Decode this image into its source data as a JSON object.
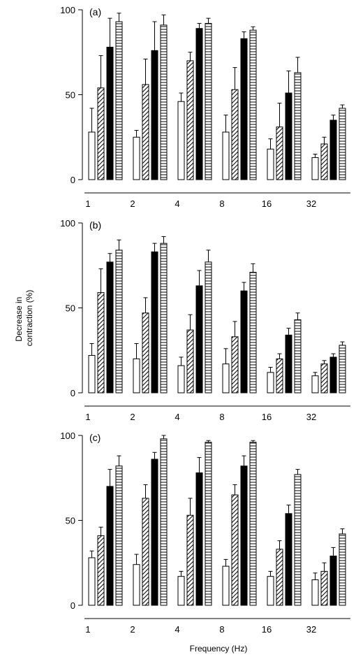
{
  "ylabel_line1": "Decrease in",
  "ylabel_line2": "contraction (%)",
  "xlabel": "Frequency (Hz)",
  "chart_data": [
    {
      "type": "bar",
      "panel": "(a)",
      "categories": [
        "1",
        "2",
        "4",
        "8",
        "16",
        "32"
      ],
      "ylim": [
        0,
        100
      ],
      "yticks": [
        0,
        50,
        100
      ],
      "series": [
        {
          "pattern": "open",
          "values": [
            28,
            25,
            46,
            28,
            18,
            13
          ],
          "errors": [
            14,
            4,
            5,
            10,
            6,
            2
          ]
        },
        {
          "pattern": "hatched",
          "values": [
            54,
            56,
            70,
            53,
            31,
            21
          ],
          "errors": [
            19,
            15,
            5,
            13,
            14,
            4
          ]
        },
        {
          "pattern": "filled",
          "values": [
            78,
            76,
            89,
            83,
            51,
            35
          ],
          "errors": [
            17,
            17,
            3,
            4,
            13,
            3
          ]
        },
        {
          "pattern": "horizontal-lines",
          "values": [
            93,
            91,
            92,
            88,
            63,
            42
          ],
          "errors": [
            5,
            6,
            3,
            2,
            9,
            2
          ]
        }
      ]
    },
    {
      "type": "bar",
      "panel": "(b)",
      "categories": [
        "1",
        "2",
        "4",
        "8",
        "16",
        "32"
      ],
      "ylim": [
        0,
        100
      ],
      "yticks": [
        0,
        50,
        100
      ],
      "series": [
        {
          "pattern": "open",
          "values": [
            22,
            20,
            16,
            17,
            12,
            10
          ],
          "errors": [
            7,
            9,
            5,
            9,
            3,
            2
          ]
        },
        {
          "pattern": "hatched",
          "values": [
            59,
            47,
            37,
            33,
            20,
            17
          ],
          "errors": [
            14,
            9,
            9,
            9,
            3,
            2
          ]
        },
        {
          "pattern": "filled",
          "values": [
            77,
            83,
            63,
            60,
            34,
            21
          ],
          "errors": [
            5,
            5,
            9,
            5,
            4,
            2
          ]
        },
        {
          "pattern": "horizontal-lines",
          "values": [
            84,
            88,
            77,
            71,
            43,
            28
          ],
          "errors": [
            6,
            4,
            7,
            5,
            4,
            2
          ]
        }
      ]
    },
    {
      "type": "bar",
      "panel": "(c)",
      "categories": [
        "1",
        "2",
        "4",
        "8",
        "16",
        "32"
      ],
      "ylim": [
        0,
        100
      ],
      "yticks": [
        0,
        50,
        100
      ],
      "series": [
        {
          "pattern": "open",
          "values": [
            28,
            24,
            17,
            23,
            17,
            15
          ],
          "errors": [
            4,
            6,
            3,
            4,
            3,
            4
          ]
        },
        {
          "pattern": "hatched",
          "values": [
            41,
            63,
            53,
            65,
            33,
            20
          ],
          "errors": [
            5,
            8,
            10,
            6,
            5,
            5
          ]
        },
        {
          "pattern": "filled",
          "values": [
            70,
            86,
            78,
            82,
            54,
            29
          ],
          "errors": [
            10,
            4,
            9,
            6,
            5,
            5
          ]
        },
        {
          "pattern": "horizontal-lines",
          "values": [
            82,
            98,
            96,
            96,
            77,
            42
          ],
          "errors": [
            6,
            2,
            1,
            1,
            3,
            3
          ]
        }
      ]
    }
  ]
}
